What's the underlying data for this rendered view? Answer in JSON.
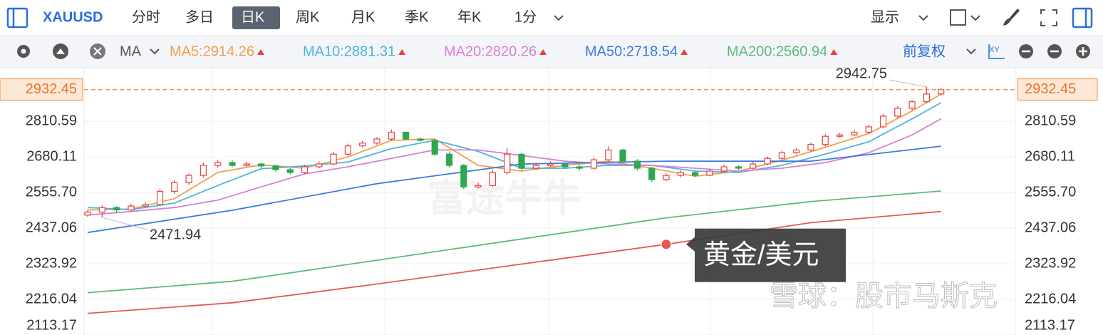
{
  "toolbar": {
    "symbol": "XAUUSD",
    "periods": [
      "分时",
      "多日",
      "日K",
      "周K",
      "月K",
      "季K",
      "年K"
    ],
    "selected": 2,
    "interval": "1分",
    "display": "显示"
  },
  "indicator_bar": {
    "indicator": "MA",
    "adjust": "前复权",
    "axis_icon": "XY"
  },
  "watermarks": [
    "富途牛牛",
    "雪球：股市马斯克"
  ],
  "chart_data": {
    "type": "candlestick",
    "log_scale": true,
    "grid": true,
    "up_color": "#e5413d",
    "down_color": "#2ea84d",
    "ylim": [
      2113.17,
      3019
    ],
    "yticks": [
      2810.59,
      2680.11,
      {
        "value": 2555.7,
        "label": "2555.70"
      },
      2437.06,
      2323.92,
      2216.04,
      2113.17
    ],
    "last_price": 2932.45,
    "last_price_color": "#f0913d",
    "open": [
      2480,
      2490,
      2505,
      2497,
      2510,
      2515,
      2560,
      2590,
      2615,
      2650,
      2660,
      2650,
      2655,
      2648,
      2635,
      2625,
      2645,
      2655,
      2690,
      2720,
      2730,
      2745,
      2770,
      2745,
      2740,
      2690,
      2650,
      2575,
      2580,
      2625,
      2690,
      2640,
      2650,
      2655,
      2645,
      2640,
      2670,
      2705,
      2665,
      2640,
      2600,
      2615,
      2625,
      2615,
      2630,
      2645,
      2640,
      2655,
      2675,
      2695,
      2705,
      2725,
      2755,
      2760,
      2770,
      2790,
      2830,
      2860,
      2885,
      2915
    ],
    "close": [
      2490,
      2505,
      2497,
      2510,
      2515,
      2560,
      2590,
      2615,
      2650,
      2660,
      2650,
      2655,
      2648,
      2635,
      2625,
      2645,
      2655,
      2690,
      2720,
      2730,
      2745,
      2770,
      2745,
      2740,
      2690,
      2650,
      2575,
      2580,
      2625,
      2690,
      2640,
      2650,
      2655,
      2645,
      2640,
      2670,
      2705,
      2665,
      2640,
      2600,
      2615,
      2625,
      2615,
      2630,
      2645,
      2640,
      2655,
      2675,
      2695,
      2705,
      2725,
      2755,
      2760,
      2770,
      2790,
      2830,
      2860,
      2885,
      2915,
      2932.45
    ],
    "high": [
      2498,
      2512,
      2510,
      2518,
      2522,
      2568,
      2598,
      2622,
      2660,
      2670,
      2668,
      2664,
      2660,
      2652,
      2640,
      2652,
      2664,
      2698,
      2728,
      2738,
      2752,
      2780,
      2772,
      2750,
      2745,
      2700,
      2655,
      2590,
      2632,
      2712,
      2695,
      2660,
      2664,
      2660,
      2652,
      2678,
      2718,
      2710,
      2672,
      2645,
      2622,
      2632,
      2630,
      2638,
      2652,
      2650,
      2662,
      2682,
      2702,
      2712,
      2732,
      2762,
      2768,
      2778,
      2798,
      2838,
      2868,
      2892,
      2942.75,
      2940
    ],
    "low": [
      2474,
      2471.94,
      2488,
      2492,
      2505,
      2510,
      2552,
      2582,
      2608,
      2642,
      2644,
      2645,
      2640,
      2628,
      2618,
      2620,
      2640,
      2650,
      2684,
      2714,
      2724,
      2738,
      2740,
      2735,
      2684,
      2642,
      2568,
      2570,
      2574,
      2618,
      2632,
      2635,
      2645,
      2638,
      2632,
      2635,
      2664,
      2660,
      2632,
      2592,
      2595,
      2608,
      2608,
      2612,
      2625,
      2634,
      2635,
      2650,
      2668,
      2690,
      2700,
      2718,
      2750,
      2755,
      2765,
      2785,
      2822,
      2852,
      2880,
      2910
    ],
    "series": [
      {
        "name": "MA5:2914.26",
        "color": "#f0a04b",
        "x": [
          0,
          3,
          6,
          9,
          12,
          15,
          18,
          21,
          24,
          27,
          30,
          33,
          36,
          39,
          42,
          45,
          48,
          51,
          54,
          57,
          59
        ],
        "values": [
          2497,
          2500,
          2535,
          2625,
          2652,
          2640,
          2680,
          2740,
          2745,
          2650,
          2630,
          2650,
          2665,
          2640,
          2612,
          2630,
          2668,
          2715,
          2765,
          2850,
          2914.26
        ]
      },
      {
        "name": "MA10:2881.31",
        "color": "#4eb3e0",
        "x": [
          0,
          3,
          6,
          9,
          12,
          15,
          18,
          21,
          24,
          27,
          30,
          33,
          36,
          39,
          42,
          45,
          48,
          51,
          54,
          57,
          59
        ],
        "values": [
          2505,
          2498,
          2520,
          2580,
          2638,
          2648,
          2662,
          2710,
          2740,
          2700,
          2640,
          2640,
          2650,
          2650,
          2630,
          2625,
          2650,
          2690,
          2735,
          2820,
          2881.31
        ]
      },
      {
        "name": "MA20:2820.26",
        "color": "#d77fd6",
        "x": [
          0,
          3,
          6,
          9,
          12,
          15,
          18,
          21,
          24,
          27,
          30,
          33,
          36,
          39,
          42,
          45,
          48,
          51,
          54,
          57,
          59
        ],
        "values": [
          2480,
          2492,
          2505,
          2530,
          2575,
          2620,
          2645,
          2675,
          2705,
          2705,
          2685,
          2665,
          2655,
          2650,
          2640,
          2630,
          2640,
          2660,
          2695,
          2760,
          2820.26
        ]
      },
      {
        "name": "MA50:2718.54",
        "color": "#3a7be0",
        "x": [
          0,
          10,
          20,
          30,
          40,
          50,
          59
        ],
        "values": [
          2423,
          2496,
          2586,
          2655,
          2665,
          2665,
          2718.54
        ]
      },
      {
        "name": "MA200:2560.94",
        "color": "#5dbb7a",
        "x": [
          0,
          10,
          20,
          30,
          40,
          50,
          59
        ],
        "values": [
          2236,
          2270,
          2335,
          2402,
          2471,
          2525,
          2560.94
        ]
      },
      {
        "name": "黄金/美元",
        "color": "#e45a50",
        "x": [
          0,
          10,
          20,
          30,
          40,
          50,
          59
        ],
        "values": [
          2175,
          2206,
          2262,
          2323,
          2385,
          2455,
          2492
        ]
      }
    ]
  }
}
